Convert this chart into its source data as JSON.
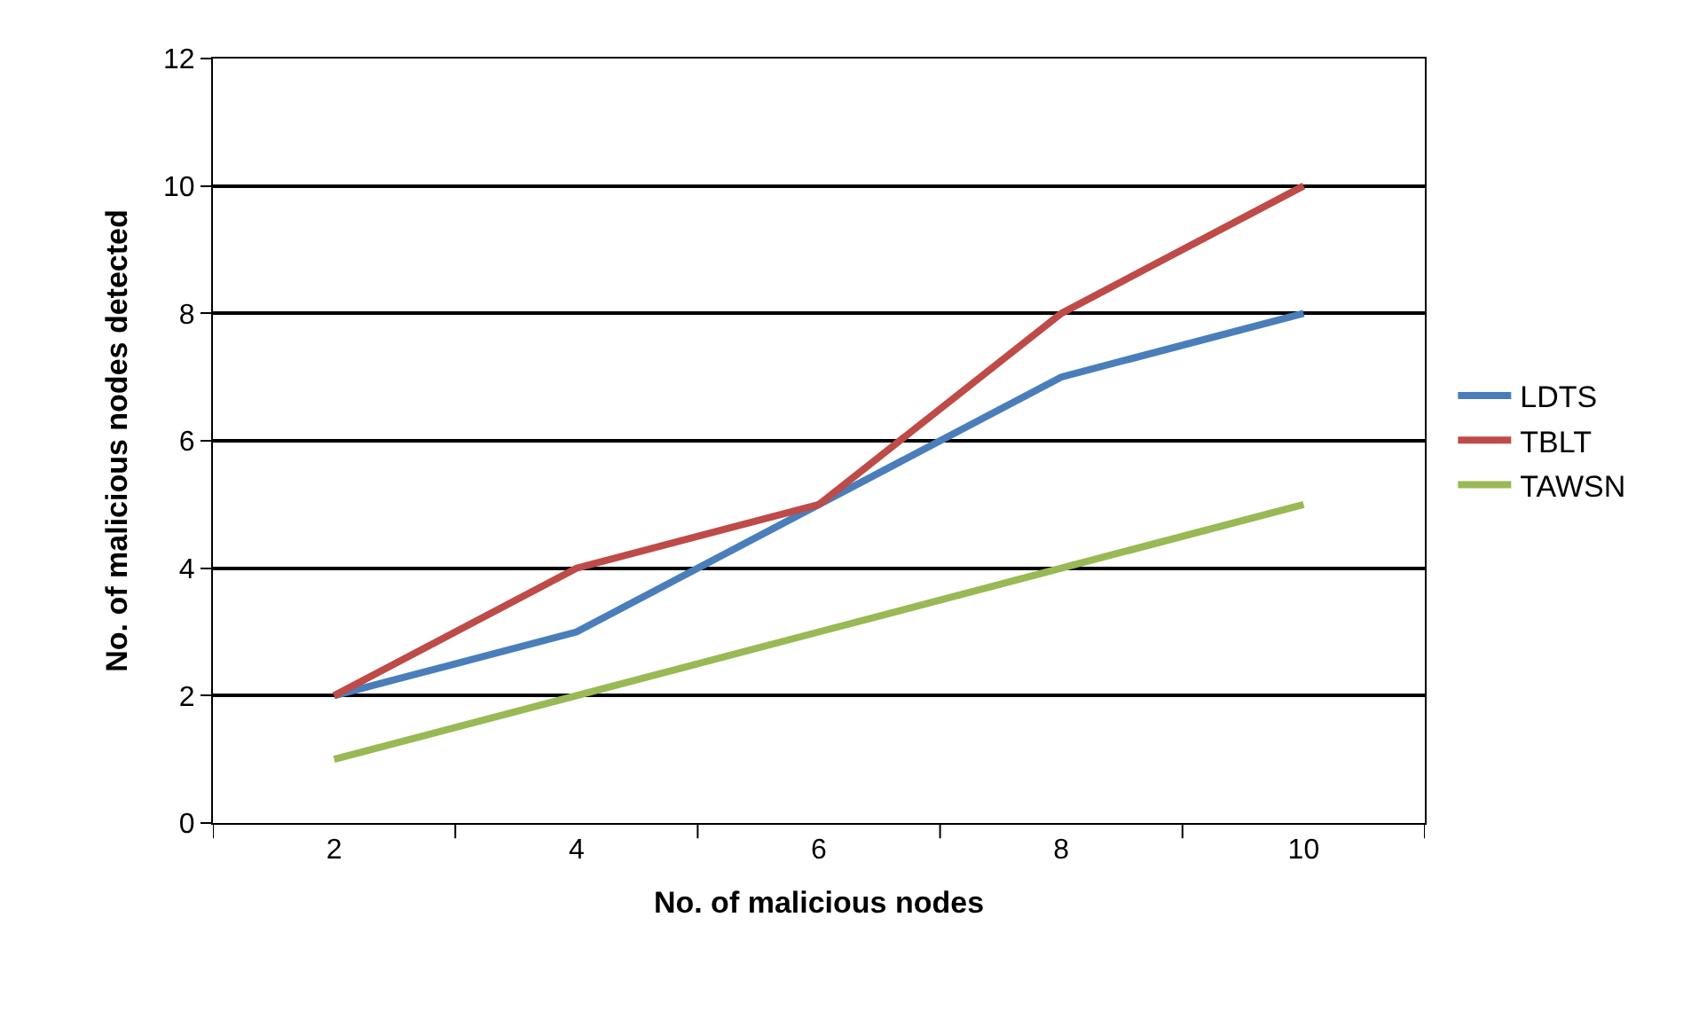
{
  "chart_data": {
    "type": "line",
    "xlabel": "No. of malicious nodes",
    "ylabel": "No. of malicious nodes detected",
    "categories": [
      "2",
      "4",
      "6",
      "8",
      "10"
    ],
    "series": [
      {
        "name": "LDTS",
        "color": "#4a7ebb",
        "values": [
          2,
          3,
          5,
          7,
          8
        ]
      },
      {
        "name": "TBLT",
        "color": "#be4b48",
        "values": [
          2,
          4,
          5,
          8,
          10
        ]
      },
      {
        "name": "TAWSN",
        "color": "#98b954",
        "values": [
          1,
          2,
          3,
          4,
          5
        ]
      }
    ],
    "ylim": [
      0,
      12
    ],
    "yticks": [
      0,
      2,
      4,
      6,
      8,
      10,
      12
    ],
    "grid": "y",
    "legend": "right",
    "marker": "none",
    "line_style": "solid"
  }
}
